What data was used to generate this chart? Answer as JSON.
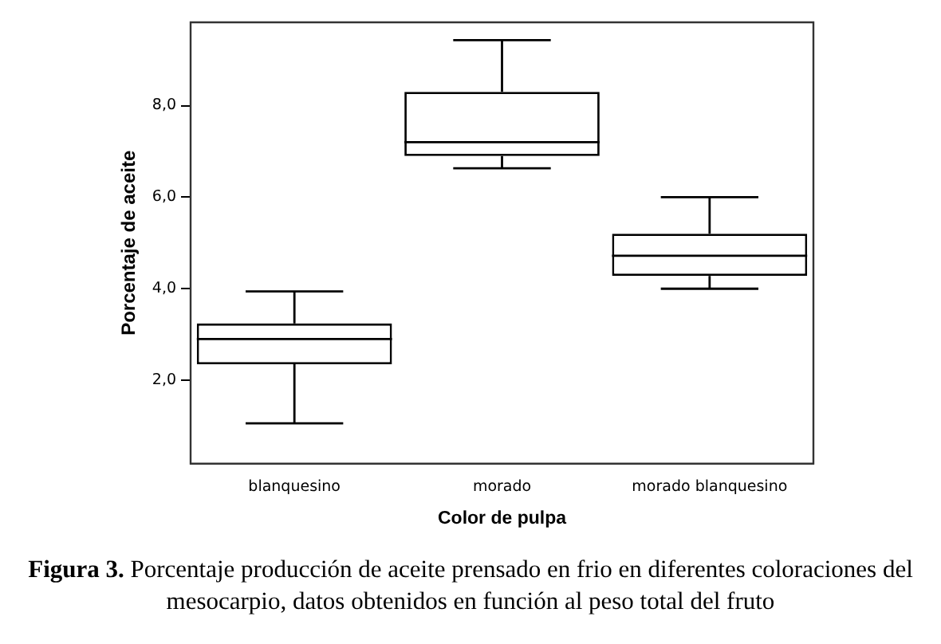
{
  "chart_data": {
    "type": "box",
    "xlabel": "Color de pulpa",
    "ylabel": "Porcentaje de aceite",
    "categories": [
      "blanquesino",
      "morado",
      "morado blanquesino"
    ],
    "boxes": [
      {
        "low": 1.06,
        "q1": 2.35,
        "median": 2.9,
        "q3": 3.24,
        "high": 3.94
      },
      {
        "low": 6.63,
        "q1": 6.9,
        "median": 7.2,
        "q3": 8.3,
        "high": 9.43
      },
      {
        "low": 4.0,
        "q1": 4.28,
        "median": 4.72,
        "q3": 5.2,
        "high": 6.0
      }
    ],
    "ylim": [
      0.18,
      9.82
    ],
    "yticks": [
      {
        "value": 2,
        "label": "2,0"
      },
      {
        "value": 4,
        "label": "4,0"
      },
      {
        "value": 6,
        "label": "6,0"
      },
      {
        "value": 8,
        "label": "8,0"
      }
    ],
    "grid": false,
    "legend": false,
    "annotations": [
      "Figura  3.",
      "Porcentaje producción de aceite prensado en frio en diferentes coloraciones del mesocarpio, datos obtenidos en función al peso total del fruto"
    ]
  }
}
